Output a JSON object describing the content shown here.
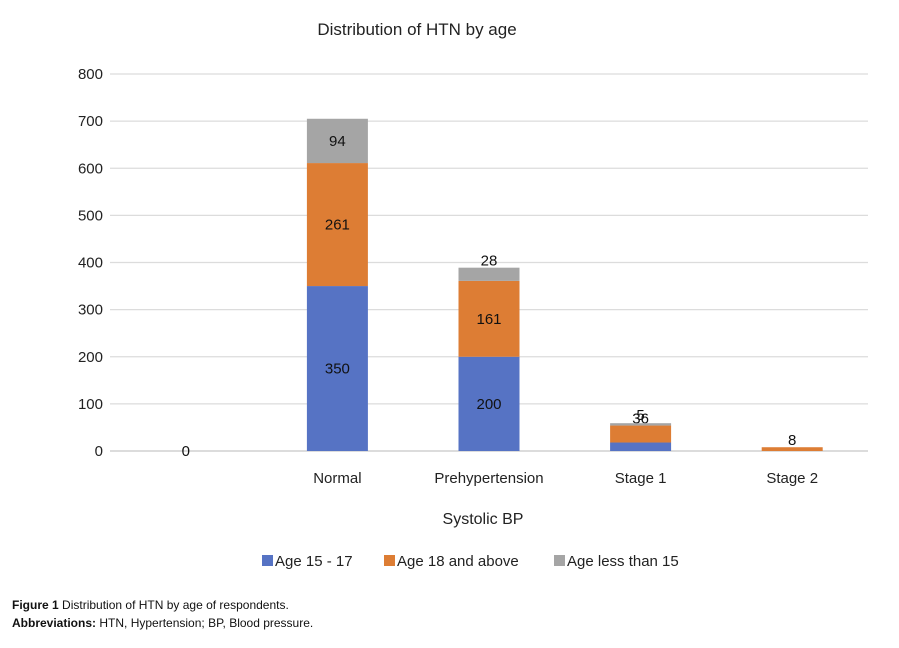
{
  "chart_data": {
    "type": "bar",
    "stacked": true,
    "title": "Distribution of HTN by age",
    "xlabel": "Systolic BP",
    "ylabel": "",
    "ylim": [
      0,
      800
    ],
    "yticks": [
      0,
      100,
      200,
      300,
      400,
      500,
      600,
      700,
      800
    ],
    "categories": [
      "",
      "Normal",
      "Prehypertension",
      "Stage 1",
      "Stage 2"
    ],
    "series": [
      {
        "name": "Age 15 - 17",
        "color": "#5673c4",
        "values": [
          0,
          350,
          200,
          18,
          0
        ],
        "labels": [
          "",
          "350",
          "200",
          "18",
          ""
        ]
      },
      {
        "name": "Age 18 and above",
        "color": "#dd7d34",
        "values": [
          0,
          261,
          161,
          36,
          8
        ],
        "labels": [
          "",
          "261",
          "161",
          "36",
          "8"
        ]
      },
      {
        "name": "Age less than 15",
        "color": "#a5a5a5",
        "values": [
          0,
          94,
          28,
          5,
          0
        ],
        "labels": [
          "",
          "94",
          "28",
          "5",
          ""
        ]
      }
    ],
    "extra_labels": [
      {
        "category": 0,
        "text": "0"
      }
    ],
    "legend_position": "bottom",
    "grid": true
  },
  "caption": {
    "fig_label": "Figure 1",
    "fig_text": "Distribution of HTN by age of respondents.",
    "abbr_label": "Abbreviations:",
    "abbr_text": "HTN, Hypertension; BP, Blood pressure."
  }
}
